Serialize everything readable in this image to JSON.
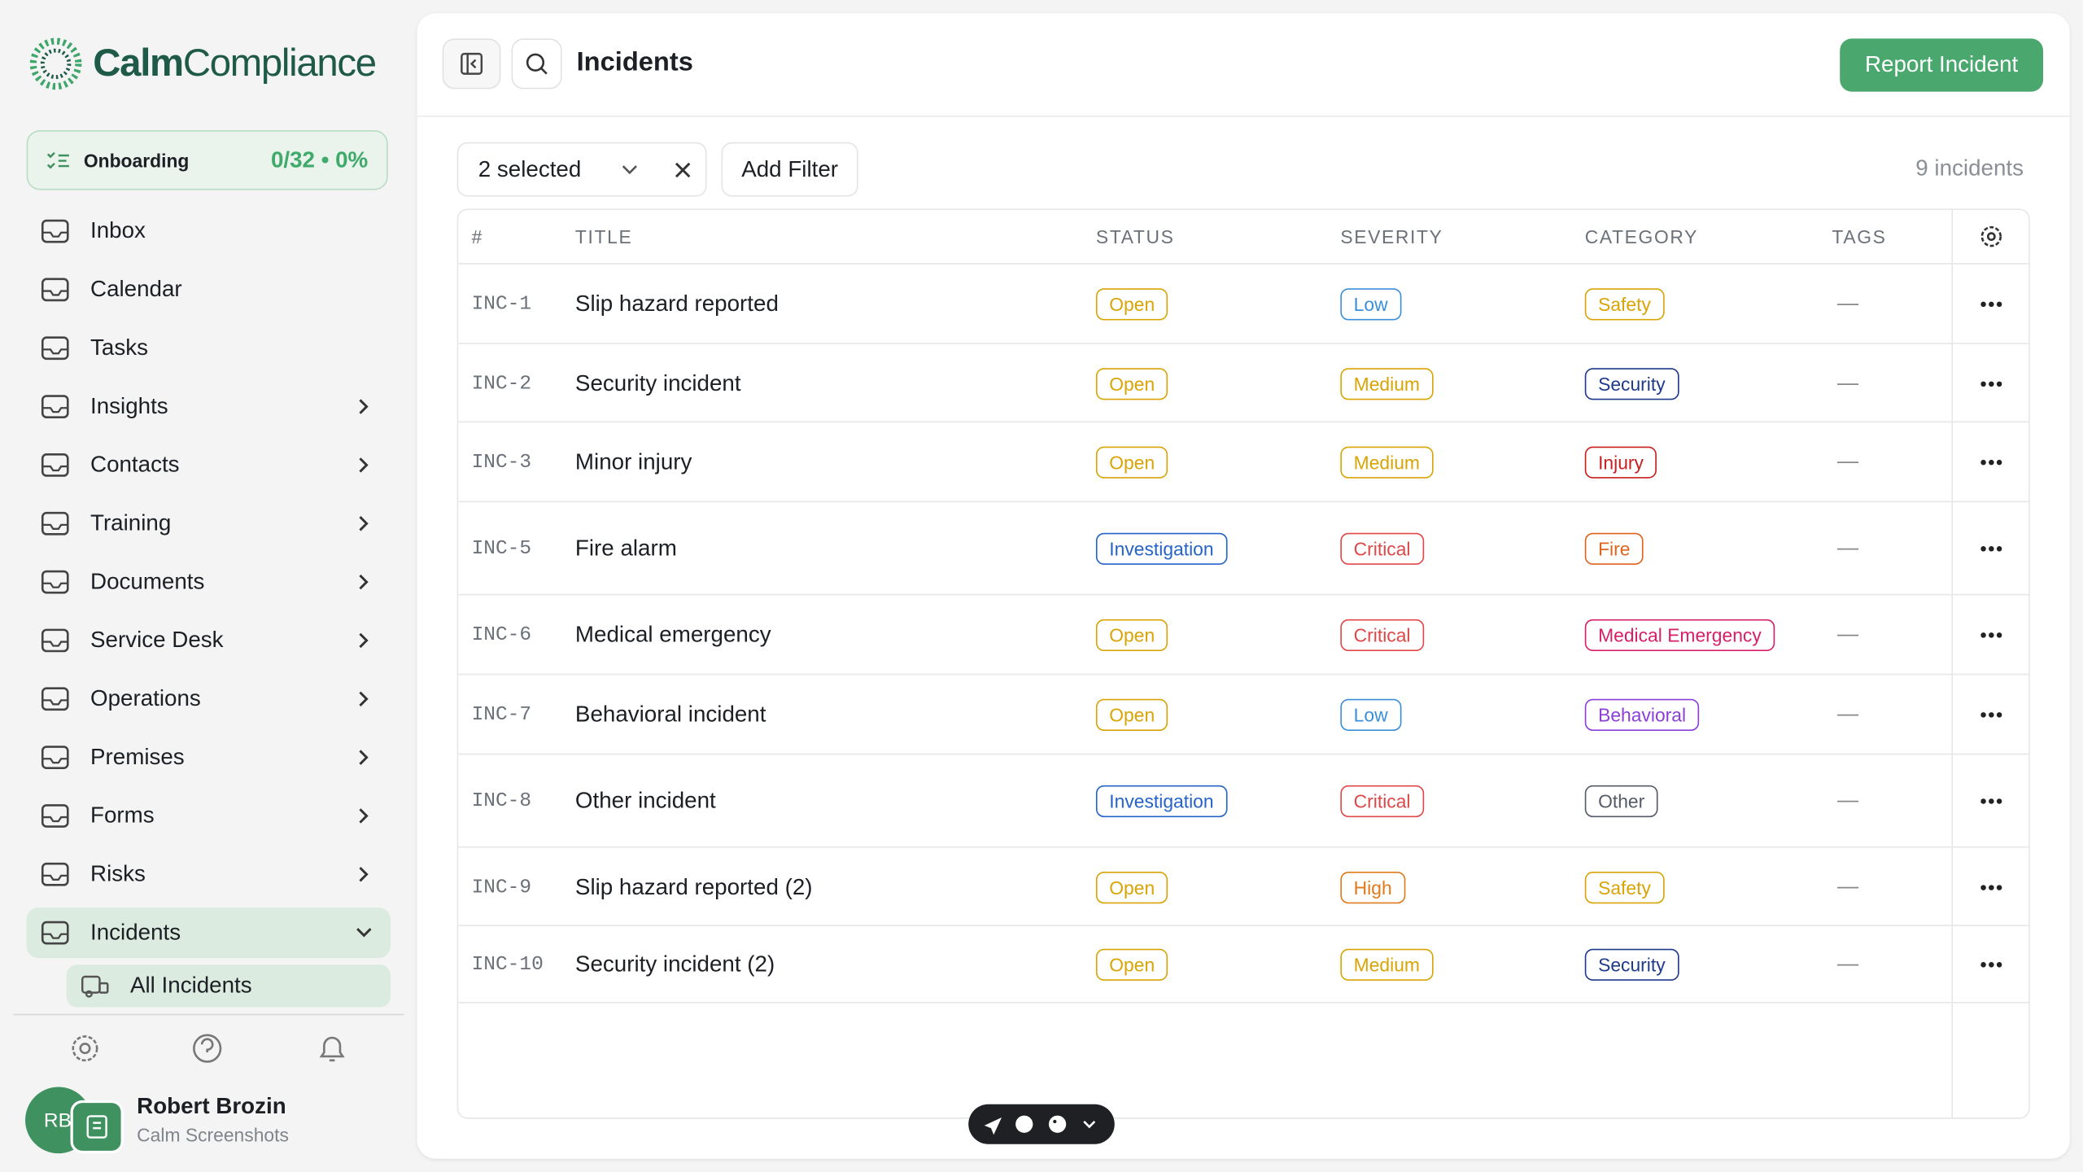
{
  "brand": {
    "bold": "Calm",
    "light": "Compliance"
  },
  "onboarding": {
    "label": "Onboarding",
    "progress": "0/32 • 0%"
  },
  "nav": [
    {
      "label": "Inbox",
      "expandable": false
    },
    {
      "label": "Calendar",
      "expandable": false
    },
    {
      "label": "Tasks",
      "expandable": false
    },
    {
      "label": "Insights",
      "expandable": true
    },
    {
      "label": "Contacts",
      "expandable": true
    },
    {
      "label": "Training",
      "expandable": true
    },
    {
      "label": "Documents",
      "expandable": true
    },
    {
      "label": "Service Desk",
      "expandable": true
    },
    {
      "label": "Operations",
      "expandable": true
    },
    {
      "label": "Premises",
      "expandable": true
    },
    {
      "label": "Forms",
      "expandable": true
    },
    {
      "label": "Risks",
      "expandable": true
    },
    {
      "label": "Incidents",
      "expandable": true,
      "open": true
    }
  ],
  "subnav": [
    "All Incidents"
  ],
  "user": {
    "initials": "RB",
    "name": "Robert Brozin",
    "org": "Calm Screenshots"
  },
  "header": {
    "title": "Incidents",
    "action": "Report Incident"
  },
  "filters": {
    "selected": "2 selected",
    "add": "Add Filter",
    "count": "9 incidents"
  },
  "table": {
    "columns": [
      "#",
      "TITLE",
      "STATUS",
      "SEVERITY",
      "CATEGORY",
      "TAGS"
    ],
    "rows": [
      {
        "id": "INC-1",
        "title": "Slip hazard reported",
        "status": {
          "text": "Open",
          "color": "#d9a406"
        },
        "severity": {
          "text": "Low",
          "color": "#3b8fd9"
        },
        "category": {
          "text": "Safety",
          "color": "#d9a406"
        },
        "tags": "—"
      },
      {
        "id": "INC-2",
        "title": "Security incident",
        "status": {
          "text": "Open",
          "color": "#d9a406"
        },
        "severity": {
          "text": "Medium",
          "color": "#d9a406"
        },
        "category": {
          "text": "Security",
          "color": "#1e3a8a"
        },
        "tags": "—"
      },
      {
        "id": "INC-3",
        "title": "Minor injury",
        "status": {
          "text": "Open",
          "color": "#d9a406"
        },
        "severity": {
          "text": "Medium",
          "color": "#d9a406"
        },
        "category": {
          "text": "Injury",
          "color": "#c81e1e"
        },
        "tags": "—"
      },
      {
        "id": "INC-5",
        "title": "Fire alarm",
        "status": {
          "text": "Investigation",
          "color": "#2563c9"
        },
        "severity": {
          "text": "Critical",
          "color": "#e04848"
        },
        "category": {
          "text": "Fire",
          "color": "#e0631c"
        },
        "tags": "—"
      },
      {
        "id": "INC-6",
        "title": "Medical emergency",
        "status": {
          "text": "Open",
          "color": "#d9a406"
        },
        "severity": {
          "text": "Critical",
          "color": "#e04848"
        },
        "category": {
          "text": "Medical Emergency",
          "color": "#d61f69"
        },
        "tags": "—"
      },
      {
        "id": "INC-7",
        "title": "Behavioral incident",
        "status": {
          "text": "Open",
          "color": "#d9a406"
        },
        "severity": {
          "text": "Low",
          "color": "#3b8fd9"
        },
        "category": {
          "text": "Behavioral",
          "color": "#8b3fd9"
        },
        "tags": "—"
      },
      {
        "id": "INC-8",
        "title": "Other incident",
        "status": {
          "text": "Investigation",
          "color": "#2563c9"
        },
        "severity": {
          "text": "Critical",
          "color": "#e04848"
        },
        "category": {
          "text": "Other",
          "color": "#555b66"
        },
        "tags": "—"
      },
      {
        "id": "INC-9",
        "title": "Slip hazard reported (2)",
        "status": {
          "text": "Open",
          "color": "#d9a406"
        },
        "severity": {
          "text": "High",
          "color": "#e07a1c"
        },
        "category": {
          "text": "Safety",
          "color": "#d9a406"
        },
        "tags": "—"
      },
      {
        "id": "INC-10",
        "title": "Security incident (2)",
        "status": {
          "text": "Open",
          "color": "#d9a406"
        },
        "severity": {
          "text": "Medium",
          "color": "#d9a406"
        },
        "category": {
          "text": "Security",
          "color": "#1e3a8a"
        },
        "tags": "—"
      }
    ]
  }
}
